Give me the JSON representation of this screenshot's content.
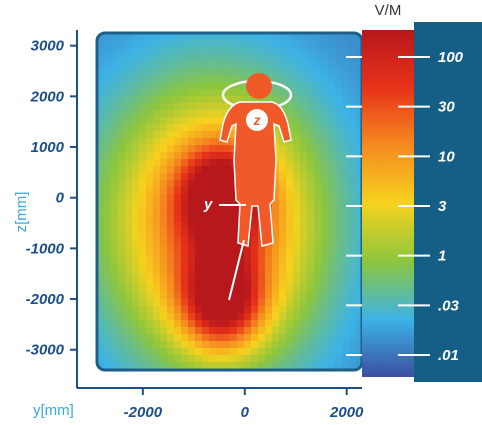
{
  "chart_data": {
    "type": "heatmap",
    "title": "",
    "xlabel": "y[mm]",
    "ylabel": "z[mm]",
    "x_ticks": [
      "-2000",
      "0",
      "2000"
    ],
    "y_ticks": [
      "3000",
      "2000",
      "1000",
      "0",
      "-1000",
      "-2000",
      "-3000"
    ],
    "xlim": [
      -2900,
      2300
    ],
    "ylim": [
      -3400,
      3250
    ],
    "colorbar": {
      "unit": "V/M",
      "tick_labels": [
        "100",
        "30",
        "10",
        "3",
        "1",
        ".03",
        ".01"
      ],
      "scale": "log",
      "colors": [
        "#b7181c",
        "#e8321a",
        "#f58b1f",
        "#f7d21e",
        "#8cc63e",
        "#3db3e6",
        "#3b4fa0"
      ]
    },
    "hotspots": [
      {
        "y_mm": -450,
        "z_mm": 0,
        "level": "~100 V/M"
      },
      {
        "y_mm": -450,
        "z_mm": -2000,
        "level": "~100 V/M"
      }
    ],
    "annotations": [
      "y",
      "z"
    ]
  },
  "colors": {
    "axis": "#1b4f8a",
    "panel_frame": "#1e5f8a",
    "colorbar_panel": "#155f86",
    "diver": "#f05a28"
  }
}
